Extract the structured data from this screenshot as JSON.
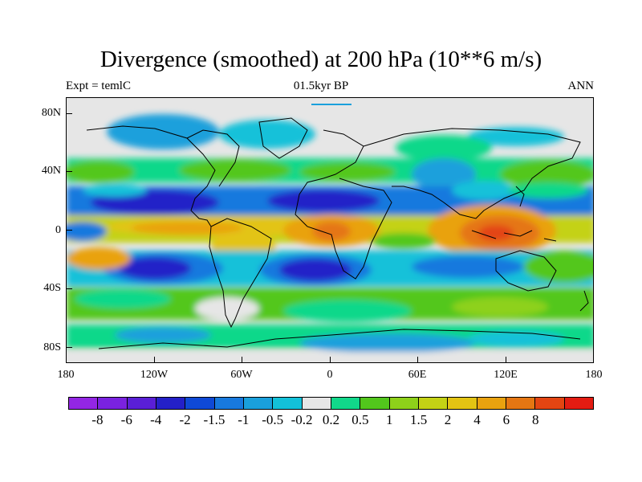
{
  "title": "Divergence (smoothed) at 200 hPa (10**6 m/s)",
  "subtitle_left": "Expt = temlC",
  "subtitle_center": "01.5kyr BP",
  "subtitle_right": "ANN",
  "lat_labels": [
    "80N",
    "40N",
    "0",
    "40S",
    "80S"
  ],
  "lon_labels": [
    "180",
    "120W",
    "60W",
    "0",
    "60E",
    "120E",
    "180"
  ],
  "colorbar": {
    "colors": [
      "#9326e4",
      "#7a22e0",
      "#5a1fd6",
      "#2420c8",
      "#0f49d6",
      "#1879de",
      "#1aa0dc",
      "#13c1d9",
      "#e6e6e6",
      "#11d88a",
      "#52c71c",
      "#8ed11a",
      "#c4d215",
      "#e3c413",
      "#e9a20f",
      "#e57612",
      "#e34512",
      "#e31c12"
    ],
    "labels": [
      "-8",
      "-6",
      "-4",
      "-2",
      "-1.5",
      "-1",
      "-0.5",
      "-0.2",
      "0.2",
      "0.5",
      "1",
      "1.5",
      "2",
      "4",
      "6",
      "8"
    ]
  }
}
